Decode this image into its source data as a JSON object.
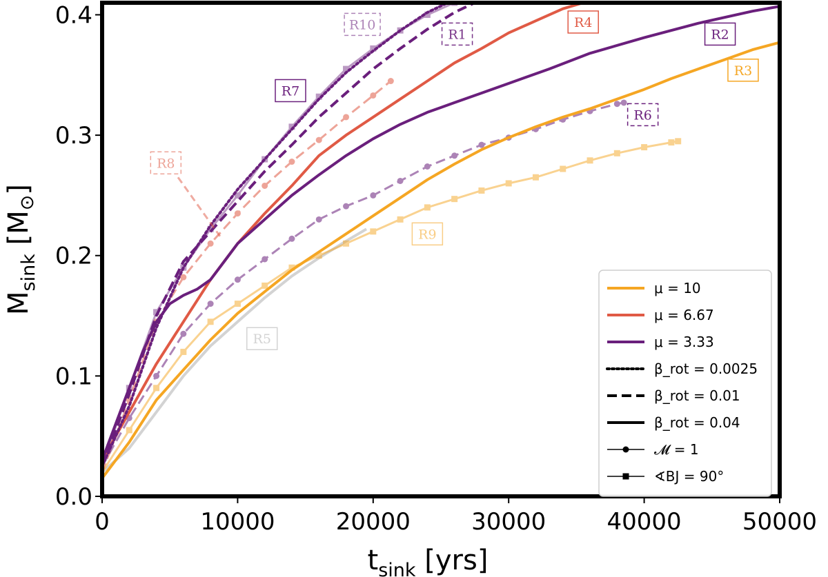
{
  "chart_data": {
    "type": "line",
    "title": "",
    "xlabel": "t",
    "xlabel_sub": "sink",
    "xlabel_unit": "[yrs]",
    "ylabel": "M",
    "ylabel_sub": "sink",
    "ylabel_unit": "[M",
    "ylabel_unit_sym": "⊙",
    "ylabel_unit_close": "]",
    "xlim": [
      0,
      50000
    ],
    "ylim": [
      0,
      0.41
    ],
    "xticks": [
      0,
      10000,
      20000,
      30000,
      40000,
      50000
    ],
    "yticks": [
      0.0,
      0.1,
      0.2,
      0.3,
      0.4
    ],
    "xtick_labels": [
      "0",
      "10000",
      "20000",
      "30000",
      "40000",
      "50000"
    ],
    "ytick_labels": [
      "0.0",
      "0.1",
      "0.2",
      "0.3",
      "0.4"
    ],
    "colors": {
      "mu10": "#f5a623",
      "mu667": "#e05a45",
      "mu333": "#6a1f7c",
      "r5": "#d3d3d3"
    },
    "series": [
      {
        "name": "R1",
        "color": "#6a1f7c",
        "dash": "dashed",
        "marker": "none",
        "alpha": 1.0,
        "x": [
          0,
          2000,
          4000,
          6000,
          8000,
          10000,
          12000,
          14000,
          16000,
          18000,
          20000,
          22000,
          24000,
          26000,
          27500
        ],
        "y": [
          0.025,
          0.085,
          0.15,
          0.195,
          0.22,
          0.245,
          0.27,
          0.292,
          0.315,
          0.335,
          0.355,
          0.372,
          0.388,
          0.402,
          0.41
        ]
      },
      {
        "name": "R2",
        "color": "#6a1f7c",
        "dash": "solid",
        "marker": "none",
        "alpha": 1.0,
        "x": [
          0,
          1000,
          2000,
          3000,
          4000,
          5000,
          6000,
          7000,
          8000,
          9000,
          10000,
          12000,
          14000,
          16000,
          18000,
          20000,
          22000,
          24000,
          26000,
          28000,
          30000,
          33000,
          36000,
          40000,
          44000,
          48000,
          50000
        ],
        "y": [
          0.03,
          0.06,
          0.09,
          0.12,
          0.145,
          0.16,
          0.167,
          0.172,
          0.18,
          0.195,
          0.21,
          0.23,
          0.25,
          0.267,
          0.283,
          0.297,
          0.309,
          0.319,
          0.327,
          0.335,
          0.343,
          0.355,
          0.368,
          0.381,
          0.393,
          0.403,
          0.407
        ]
      },
      {
        "name": "R3",
        "color": "#f5a623",
        "dash": "solid",
        "marker": "none",
        "alpha": 1.0,
        "x": [
          0,
          2000,
          4000,
          6000,
          8000,
          10000,
          12000,
          14000,
          16000,
          18000,
          20000,
          22000,
          24000,
          26000,
          28000,
          30000,
          32000,
          34000,
          36000,
          38000,
          40000,
          42000,
          44000,
          46000,
          48000,
          50000
        ],
        "y": [
          0.015,
          0.045,
          0.08,
          0.105,
          0.13,
          0.152,
          0.17,
          0.188,
          0.203,
          0.218,
          0.233,
          0.248,
          0.263,
          0.276,
          0.288,
          0.298,
          0.307,
          0.315,
          0.322,
          0.33,
          0.338,
          0.347,
          0.355,
          0.363,
          0.371,
          0.377
        ]
      },
      {
        "name": "R4",
        "color": "#e05a45",
        "dash": "solid",
        "marker": "none",
        "alpha": 1.0,
        "x": [
          0,
          2000,
          4000,
          6000,
          8000,
          10000,
          12000,
          14000,
          16000,
          18000,
          20000,
          22000,
          24000,
          26000,
          28000,
          30000,
          32000,
          34000,
          35500
        ],
        "y": [
          0.03,
          0.07,
          0.11,
          0.145,
          0.18,
          0.21,
          0.235,
          0.258,
          0.283,
          0.3,
          0.315,
          0.33,
          0.345,
          0.36,
          0.372,
          0.385,
          0.395,
          0.405,
          0.41
        ]
      },
      {
        "name": "R5",
        "color": "#d3d3d3",
        "dash": "solid",
        "marker": "none",
        "alpha": 1.0,
        "x": [
          0,
          2000,
          4000,
          6000,
          8000,
          10000,
          12000,
          14000,
          16000,
          18000,
          19500
        ],
        "y": [
          0.02,
          0.04,
          0.07,
          0.1,
          0.125,
          0.145,
          0.165,
          0.183,
          0.198,
          0.212,
          0.222
        ]
      },
      {
        "name": "R6",
        "color": "#6a1f7c",
        "dash": "dashed",
        "marker": "circle",
        "alpha": 0.55,
        "x": [
          0,
          2000,
          4000,
          6000,
          8000,
          10000,
          12000,
          14000,
          16000,
          18000,
          20000,
          22000,
          24000,
          26000,
          28000,
          30000,
          32000,
          34000,
          36000,
          38000,
          38500
        ],
        "y": [
          0.025,
          0.065,
          0.1,
          0.135,
          0.16,
          0.18,
          0.197,
          0.214,
          0.23,
          0.241,
          0.25,
          0.262,
          0.274,
          0.283,
          0.292,
          0.298,
          0.305,
          0.313,
          0.32,
          0.326,
          0.327
        ]
      },
      {
        "name": "R7",
        "color": "#6a1f7c",
        "dash": "dotted",
        "marker": "none",
        "alpha": 1.0,
        "x": [
          0,
          2000,
          4000,
          6000,
          8000,
          10000,
          12000,
          14000,
          16000,
          18000,
          20000,
          22000,
          24000,
          25500
        ],
        "y": [
          0.025,
          0.075,
          0.14,
          0.19,
          0.225,
          0.255,
          0.28,
          0.305,
          0.33,
          0.352,
          0.37,
          0.387,
          0.402,
          0.41
        ]
      },
      {
        "name": "R8",
        "color": "#e05a45",
        "dash": "dashed",
        "marker": "circle",
        "alpha": 0.55,
        "x": [
          0,
          2000,
          4000,
          6000,
          8000,
          10000,
          12000,
          14000,
          16000,
          18000,
          20000,
          21300
        ],
        "y": [
          0.02,
          0.08,
          0.145,
          0.182,
          0.21,
          0.235,
          0.258,
          0.278,
          0.296,
          0.315,
          0.333,
          0.345
        ]
      },
      {
        "name": "R9",
        "color": "#f5a623",
        "dash": "solid",
        "marker": "square",
        "alpha": 0.5,
        "x": [
          0,
          2000,
          4000,
          6000,
          8000,
          10000,
          12000,
          14000,
          16000,
          18000,
          20000,
          22000,
          24000,
          26000,
          28000,
          30000,
          32000,
          34000,
          36000,
          38000,
          40000,
          42000,
          42500
        ],
        "y": [
          0.02,
          0.055,
          0.09,
          0.12,
          0.145,
          0.16,
          0.175,
          0.19,
          0.2,
          0.21,
          0.22,
          0.23,
          0.24,
          0.247,
          0.254,
          0.26,
          0.265,
          0.272,
          0.279,
          0.285,
          0.29,
          0.294,
          0.295
        ]
      },
      {
        "name": "R10",
        "color": "#6a1f7c",
        "dash": "solid",
        "marker": "square",
        "alpha": 0.45,
        "x": [
          0,
          2000,
          4000,
          6000,
          8000,
          10000,
          12000,
          14000,
          16000,
          18000,
          20000,
          22000,
          24000,
          26000
        ],
        "y": [
          0.025,
          0.09,
          0.153,
          0.19,
          0.222,
          0.25,
          0.28,
          0.307,
          0.332,
          0.355,
          0.372,
          0.387,
          0.4,
          0.41
        ]
      }
    ],
    "run_labels": [
      {
        "text": "R10",
        "x": 19200,
        "y": 0.392,
        "color": "#6a1f7c",
        "border": "dashed",
        "alpha": 0.55
      },
      {
        "text": "R1",
        "x": 26200,
        "y": 0.384,
        "color": "#6a1f7c",
        "border": "dashed",
        "alpha": 0.9
      },
      {
        "text": "R4",
        "x": 35500,
        "y": 0.394,
        "color": "#e05a45",
        "border": "solid",
        "alpha": 1.0
      },
      {
        "text": "R2",
        "x": 45600,
        "y": 0.384,
        "color": "#6a1f7c",
        "border": "solid",
        "alpha": 1.0
      },
      {
        "text": "R3",
        "x": 47300,
        "y": 0.354,
        "color": "#f5a623",
        "border": "solid",
        "alpha": 1.0
      },
      {
        "text": "R7",
        "x": 13900,
        "y": 0.337,
        "color": "#6a1f7c",
        "border": "solid",
        "alpha": 1.0
      },
      {
        "text": "R6",
        "x": 39900,
        "y": 0.317,
        "color": "#6a1f7c",
        "border": "dashed",
        "alpha": 1.0
      },
      {
        "text": "R8",
        "x": 4700,
        "y": 0.277,
        "color": "#e05a45",
        "border": "dashed",
        "alpha": 0.55
      },
      {
        "text": "R9",
        "x": 24000,
        "y": 0.218,
        "color": "#f5a623",
        "border": "solid",
        "alpha": 0.55
      },
      {
        "text": "R5",
        "x": 11800,
        "y": 0.131,
        "color": "#d3d3d3",
        "border": "solid",
        "alpha": 1.0
      }
    ],
    "r8_leader": {
      "from": [
        5600,
        0.265
      ],
      "to": [
        8700,
        0.216
      ]
    },
    "legend": {
      "position": "lower-right",
      "entries": [
        {
          "label": "μ = 10",
          "color": "#f5a623",
          "dash": "solid",
          "marker": "none"
        },
        {
          "label": "μ = 6.67",
          "color": "#e05a45",
          "dash": "solid",
          "marker": "none"
        },
        {
          "label": "μ = 3.33",
          "color": "#6a1f7c",
          "dash": "solid",
          "marker": "none"
        },
        {
          "label": "β_rot = 0.0025",
          "color": "#000000",
          "dash": "dotted",
          "marker": "none"
        },
        {
          "label": "β_rot = 0.01",
          "color": "#000000",
          "dash": "dashed",
          "marker": "none"
        },
        {
          "label": "β_rot = 0.04",
          "color": "#000000",
          "dash": "solid",
          "marker": "none"
        },
        {
          "label": "𝓜 = 1",
          "color": "#000000",
          "dash": "solid",
          "marker": "circle",
          "thin": true
        },
        {
          "label": "∢BJ = 90°",
          "color": "#000000",
          "dash": "solid",
          "marker": "square",
          "thin": true
        }
      ]
    }
  }
}
